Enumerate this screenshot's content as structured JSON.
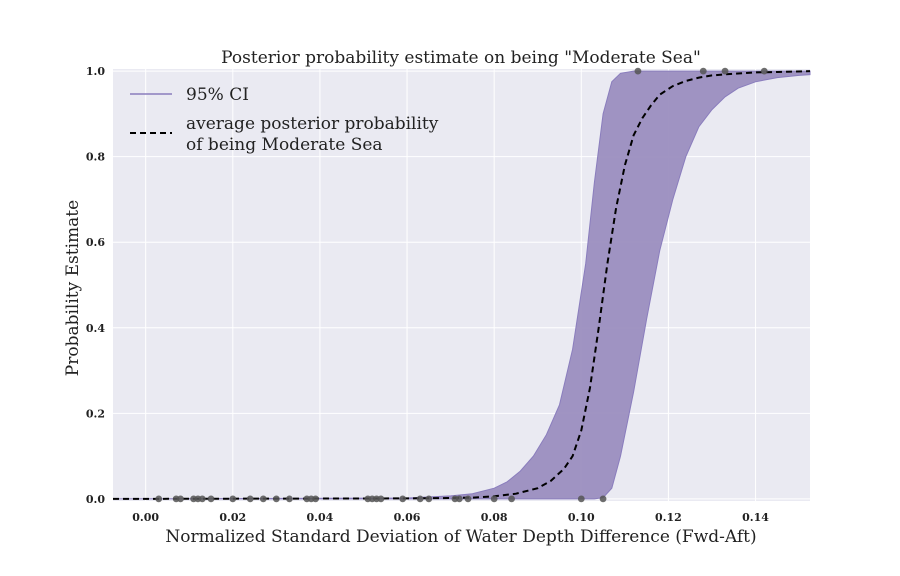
{
  "chart_data": {
    "type": "line",
    "title": "Posterior probability estimate on being \"Moderate Sea\"",
    "xlabel": "Normalized Standard Deviation of Water Depth Difference (Fwd-Aft)",
    "ylabel": "Probability Estimate",
    "xlim": [
      -0.0075,
      0.1525
    ],
    "ylim": [
      -0.005,
      1.005
    ],
    "xticks": [
      "0.00",
      "0.02",
      "0.04",
      "0.06",
      "0.08",
      "0.10",
      "0.12",
      "0.14"
    ],
    "yticks": [
      "0.0",
      "0.2",
      "0.4",
      "0.6",
      "0.8",
      "1.0"
    ],
    "grid": true,
    "legend_position": "top-left",
    "legend": {
      "ci_label": "95% CI",
      "mean_label_line1": "average posterior probability",
      "mean_label_line2": "of being Moderate Sea"
    },
    "ci_band": {
      "x": [
        -0.0075,
        0.06,
        0.07,
        0.075,
        0.08,
        0.083,
        0.086,
        0.089,
        0.092,
        0.095,
        0.098,
        0.101,
        0.103,
        0.105,
        0.107,
        0.109,
        0.112,
        0.115,
        0.118,
        0.121,
        0.124,
        0.127,
        0.13,
        0.133,
        0.136,
        0.14,
        0.145,
        0.15,
        0.1525
      ],
      "lower": [
        0,
        0,
        0,
        0,
        0,
        0,
        0,
        0,
        0,
        0,
        0,
        0,
        0,
        0.003,
        0.025,
        0.1,
        0.25,
        0.42,
        0.58,
        0.7,
        0.8,
        0.87,
        0.91,
        0.94,
        0.96,
        0.975,
        0.985,
        0.99,
        0.992
      ],
      "upper": [
        0,
        0.002,
        0.007,
        0.012,
        0.025,
        0.04,
        0.065,
        0.1,
        0.15,
        0.22,
        0.35,
        0.55,
        0.74,
        0.9,
        0.975,
        0.995,
        1,
        1,
        1,
        1,
        1,
        1,
        1,
        1,
        1,
        1,
        1,
        1,
        1
      ]
    },
    "mean_line": {
      "x": [
        -0.0075,
        0.06,
        0.07,
        0.075,
        0.08,
        0.085,
        0.09,
        0.093,
        0.096,
        0.098,
        0.1,
        0.102,
        0.104,
        0.106,
        0.108,
        0.11,
        0.112,
        0.114,
        0.116,
        0.118,
        0.121,
        0.124,
        0.127,
        0.13,
        0.135,
        0.14,
        0.145,
        0.1525
      ],
      "y": [
        0,
        0.001,
        0.002,
        0.003,
        0.006,
        0.012,
        0.025,
        0.042,
        0.07,
        0.1,
        0.16,
        0.26,
        0.4,
        0.55,
        0.68,
        0.78,
        0.85,
        0.89,
        0.92,
        0.945,
        0.965,
        0.977,
        0.985,
        0.99,
        0.994,
        0.997,
        0.998,
        1
      ]
    },
    "observations": {
      "x": [
        0.003,
        0.007,
        0.008,
        0.011,
        0.012,
        0.013,
        0.015,
        0.02,
        0.024,
        0.027,
        0.03,
        0.033,
        0.037,
        0.038,
        0.039,
        0.051,
        0.052,
        0.053,
        0.054,
        0.059,
        0.063,
        0.065,
        0.071,
        0.072,
        0.074,
        0.08,
        0.084,
        0.1,
        0.105,
        0.113,
        0.128,
        0.133,
        0.142
      ],
      "y": [
        0,
        0,
        0,
        0,
        0,
        0,
        0,
        0,
        0,
        0,
        0,
        0,
        0,
        0,
        0,
        0,
        0,
        0,
        0,
        0,
        0,
        0,
        0,
        0,
        0,
        0,
        0,
        0,
        0,
        1,
        1,
        1,
        1
      ]
    },
    "colors": {
      "background": "#eaeaf2",
      "grid": "#ffffff",
      "band_fill": "#9b8ebf",
      "band_edge": "#8a7dbd",
      "mean_line": "#000000",
      "points": "#555555"
    }
  }
}
